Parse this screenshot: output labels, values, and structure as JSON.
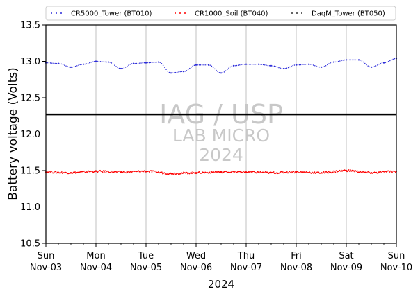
{
  "chart_data": {
    "type": "scatter",
    "xlabel": "2024",
    "ylabel": "Battery voltage (Volts)",
    "ylim": [
      10.5,
      13.5
    ],
    "xlim": [
      "2024-11-03",
      "2024-11-10"
    ],
    "yticks": [
      10.5,
      11.0,
      11.5,
      12.0,
      12.5,
      13.0,
      13.5
    ],
    "ytick_labels": [
      "10.5",
      "11.0",
      "11.5",
      "12.0",
      "12.5",
      "13.0",
      "13.5"
    ],
    "xticks": [
      {
        "date": "2024-11-03",
        "day": "Sun",
        "date_label": "Nov-03"
      },
      {
        "date": "2024-11-04",
        "day": "Mon",
        "date_label": "Nov-04"
      },
      {
        "date": "2024-11-05",
        "day": "Tue",
        "date_label": "Nov-05"
      },
      {
        "date": "2024-11-06",
        "day": "Wed",
        "date_label": "Nov-06"
      },
      {
        "date": "2024-11-07",
        "day": "Thu",
        "date_label": "Nov-07"
      },
      {
        "date": "2024-11-08",
        "day": "Fri",
        "date_label": "Nov-08"
      },
      {
        "date": "2024-11-09",
        "day": "Sat",
        "date_label": "Nov-09"
      },
      {
        "date": "2024-11-10",
        "day": "Sun",
        "date_label": "Nov-10"
      }
    ],
    "grid": "vertical-major",
    "legend_position": "top",
    "reference_line": {
      "y": 12.27,
      "color": "#000000"
    },
    "watermark": [
      "IAG / USP",
      "LAB MICRO",
      "2024"
    ],
    "series": [
      {
        "name": "CR5000_Tower (BT010)",
        "color": "#2b2bd9",
        "x": [
          "2024-11-03 00:00",
          "2024-11-03 06:00",
          "2024-11-03 12:00",
          "2024-11-03 18:00",
          "2024-11-04 00:00",
          "2024-11-04 06:00",
          "2024-11-04 12:00",
          "2024-11-04 18:00",
          "2024-11-05 00:00",
          "2024-11-05 06:00",
          "2024-11-05 12:00",
          "2024-11-05 18:00",
          "2024-11-06 00:00",
          "2024-11-06 06:00",
          "2024-11-06 12:00",
          "2024-11-06 18:00",
          "2024-11-07 00:00",
          "2024-11-07 06:00",
          "2024-11-07 12:00",
          "2024-11-07 18:00",
          "2024-11-08 00:00",
          "2024-11-08 06:00",
          "2024-11-08 12:00",
          "2024-11-08 18:00",
          "2024-11-09 00:00",
          "2024-11-09 06:00",
          "2024-11-09 12:00",
          "2024-11-09 18:00",
          "2024-11-10 00:00"
        ],
        "y": [
          12.98,
          12.97,
          12.92,
          12.96,
          13.0,
          12.99,
          12.9,
          12.97,
          12.98,
          12.99,
          12.84,
          12.86,
          12.95,
          12.95,
          12.84,
          12.94,
          12.96,
          12.96,
          12.94,
          12.9,
          12.95,
          12.96,
          12.92,
          12.99,
          13.02,
          13.02,
          12.92,
          12.98,
          13.04
        ]
      },
      {
        "name": "CR1000_Soil (BT040)",
        "color": "#ff0000",
        "x": [
          "2024-11-03 00:00",
          "2024-11-03 12:00",
          "2024-11-04 00:00",
          "2024-11-04 12:00",
          "2024-11-05 00:00",
          "2024-11-05 12:00",
          "2024-11-06 00:00",
          "2024-11-06 12:00",
          "2024-11-07 00:00",
          "2024-11-07 12:00",
          "2024-11-08 00:00",
          "2024-11-08 12:00",
          "2024-11-09 00:00",
          "2024-11-09 12:00",
          "2024-11-10 00:00"
        ],
        "y": [
          11.48,
          11.47,
          11.49,
          11.48,
          11.49,
          11.46,
          11.47,
          11.48,
          11.48,
          11.47,
          11.48,
          11.47,
          11.5,
          11.47,
          11.49
        ]
      },
      {
        "name": "DaqM_Tower (BT050)",
        "color": "#333333",
        "x": [],
        "y": []
      }
    ]
  }
}
